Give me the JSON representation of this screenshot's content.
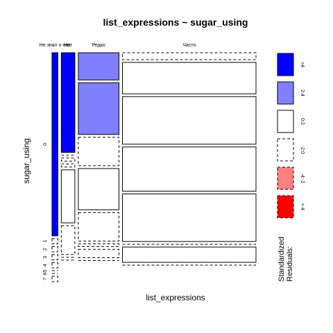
{
  "chart_data": {
    "type": "mosaic",
    "title": "list_expressions ~ sugar_using",
    "xlabel": "list_expressions",
    "ylabel": "sugar_using",
    "column_categories": [
      "Не знал о них",
      "Нет",
      "Редко",
      "Часто"
    ],
    "row_categories": [
      "0",
      "1",
      "2",
      "3",
      "4",
      "5",
      "6",
      "7"
    ],
    "column_proportions": [
      0.03,
      0.07,
      0.21,
      0.69
    ],
    "cells": [
      {
        "column": "Не знал о них",
        "segments": [
          {
            "row": "0",
            "proportion": 0.874,
            "residual_class": ">4"
          },
          {
            "row": "1",
            "proportion": 0.025,
            "residual_class": "-2:0"
          },
          {
            "row": "2",
            "proportion": 0.025,
            "residual_class": "-2:0"
          },
          {
            "row": "3",
            "proportion": 0.025,
            "residual_class": "-2:0"
          },
          {
            "row": "4",
            "proportion": 0.025,
            "residual_class": "-2:0"
          },
          {
            "row": "5",
            "proportion": 0.0,
            "residual_class": "-2:0"
          },
          {
            "row": "6",
            "proportion": 0.0,
            "residual_class": "-2:0"
          },
          {
            "row": "7",
            "proportion": 0.026,
            "residual_class": "-2:0"
          }
        ]
      },
      {
        "column": "Нет",
        "segments": [
          {
            "row": "0",
            "proportion": 0.476,
            "residual_class": ">4"
          },
          {
            "row": "1",
            "proportion": 0.0,
            "residual_class": "-2:0"
          },
          {
            "row": "2",
            "proportion": 0.015,
            "residual_class": "-2:0"
          },
          {
            "row": "3",
            "proportion": 0.015,
            "residual_class": "-2:0"
          },
          {
            "row": "4",
            "proportion": 0.253,
            "residual_class": "0:2"
          },
          {
            "row": "5",
            "proportion": 0.138,
            "residual_class": "-2:0"
          },
          {
            "row": "6",
            "proportion": 0.0,
            "residual_class": "-2:0"
          },
          {
            "row": "7",
            "proportion": 0.0,
            "residual_class": "-2:0"
          }
        ]
      },
      {
        "column": "Редко",
        "segments": [
          {
            "row": "0",
            "proportion": 0.13,
            "residual_class": "2:4"
          },
          {
            "row": "1",
            "proportion": 0.247,
            "residual_class": "2:4"
          },
          {
            "row": "2",
            "proportion": 0.136,
            "residual_class": "-2:0"
          },
          {
            "row": "3",
            "proportion": 0.197,
            "residual_class": "0:2"
          },
          {
            "row": "4",
            "proportion": 0.136,
            "residual_class": "-2:0"
          },
          {
            "row": "5",
            "proportion": 0.013,
            "residual_class": "-2:0"
          },
          {
            "row": "6",
            "proportion": 0.04,
            "residual_class": "-2:0"
          },
          {
            "row": "7",
            "proportion": 0.0,
            "residual_class": "-2:0"
          }
        ]
      },
      {
        "column": "Часто",
        "segments": [
          {
            "row": "0",
            "proportion": 0.033,
            "residual_class": "-2:0"
          },
          {
            "row": "1",
            "proportion": 0.15,
            "residual_class": "0:2"
          },
          {
            "row": "2",
            "proportion": 0.227,
            "residual_class": "0:2"
          },
          {
            "row": "3",
            "proportion": 0.211,
            "residual_class": "0:2"
          },
          {
            "row": "4",
            "proportion": 0.227,
            "residual_class": "0:2"
          },
          {
            "row": "5",
            "proportion": 0.0,
            "residual_class": "-2:0"
          },
          {
            "row": "6",
            "proportion": 0.073,
            "residual_class": "0:2"
          },
          {
            "row": "7",
            "proportion": 0.0,
            "residual_class": "-2:0"
          }
        ]
      }
    ],
    "legend": {
      "title": "Standardized Residuals:",
      "placement": "right",
      "entries": [
        {
          "label": ">4",
          "fill": "#0000ff",
          "dashed": false
        },
        {
          "label": "2:4",
          "fill": "#8080ff",
          "dashed": false
        },
        {
          "label": "0:2",
          "fill": "#ffffff",
          "dashed": false
        },
        {
          "label": "-2:0",
          "fill": "#ffffff",
          "dashed": true
        },
        {
          "label": "-4:-2",
          "fill": "#ff8080",
          "dashed": true
        },
        {
          "label": "<-4",
          "fill": "#ff0000",
          "dashed": true
        }
      ]
    }
  }
}
